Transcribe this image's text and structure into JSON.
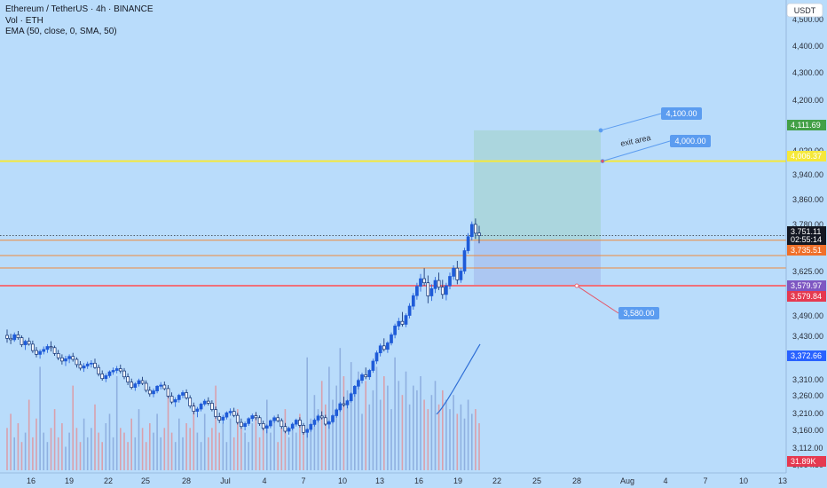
{
  "header": {
    "symbol_line": "Ethereum / TetherUS · 4h · BINANCE",
    "vol_line": "Vol · ETH",
    "ema_line": "EMA (50, close, 0, SMA, 50)"
  },
  "currency_badge": "USDT",
  "colors": {
    "background": "#b9dcfb",
    "bull": "#1e5bd8",
    "bear": "#0b2a6e",
    "target_zone": "#a8d5d8",
    "stop_zone": "#a9c3f0",
    "yellow_line": "#f5e83a",
    "red_line": "#f0707a",
    "orange_line": "#f08a3c",
    "ema": "#2f6fd6",
    "callout": "#5b9cf0"
  },
  "chart_data": {
    "type": "candlestick",
    "x_tick_labels": [
      "16",
      "19",
      "22",
      "25",
      "28",
      "Jul",
      "4",
      "7",
      "10",
      "13",
      "16",
      "19",
      "22",
      "25",
      "28",
      "Aug",
      "4",
      "7",
      "10",
      "13"
    ],
    "y_tick_labels": [
      "4,500.00",
      "4,400.00",
      "4,300.00",
      "4,200.00",
      "4,020.00",
      "3,940.00",
      "3,860.00",
      "3,780.00",
      "3,625.00",
      "3,490.00",
      "3,430.00",
      "3,310.00",
      "3,260.00",
      "3,210.00",
      "3,160.00",
      "3,112.00",
      "3,064.50"
    ],
    "price_tags": [
      {
        "label": "4,111.69",
        "color": "#43a047"
      },
      {
        "label": "4,006.37",
        "color": "#f5e83a",
        "text_color": "#131722"
      },
      {
        "label": "3,751.11",
        "color": "#131722"
      },
      {
        "label": "02:55:14",
        "color": "#131722"
      },
      {
        "label": "3,735.51",
        "color": "#f0702a"
      },
      {
        "label": "3,579.97",
        "color": "#7e57c2"
      },
      {
        "label": "3,579.84",
        "color": "#e53950"
      },
      {
        "label": "3,372.66",
        "color": "#2962ff"
      },
      {
        "label": "31.89K",
        "color": "#e53950"
      }
    ],
    "levels": {
      "yellow_line": 4006.37,
      "red_line": 3579.84,
      "entry": 3735.51,
      "last_price": 3751.11
    },
    "position": {
      "target": 4111.69,
      "entry": 3735.51,
      "stop": 3579.84
    },
    "callouts": [
      {
        "label": "4,100.00"
      },
      {
        "label": "4,000.00"
      },
      {
        "label": "3,580.00"
      }
    ],
    "annotation_text": "exit area",
    "candles": [
      [
        3410,
        3430,
        3385,
        3400
      ],
      [
        3400,
        3415,
        3380,
        3395
      ],
      [
        3395,
        3420,
        3388,
        3412
      ],
      [
        3412,
        3425,
        3395,
        3402
      ],
      [
        3402,
        3410,
        3370,
        3378
      ],
      [
        3378,
        3395,
        3360,
        3390
      ],
      [
        3390,
        3402,
        3375,
        3380
      ],
      [
        3380,
        3392,
        3350,
        3358
      ],
      [
        3358,
        3370,
        3335,
        3345
      ],
      [
        3345,
        3362,
        3330,
        3355
      ],
      [
        3355,
        3372,
        3345,
        3362
      ],
      [
        3362,
        3380,
        3350,
        3372
      ],
      [
        3372,
        3390,
        3355,
        3368
      ],
      [
        3368,
        3375,
        3340,
        3348
      ],
      [
        3348,
        3360,
        3325,
        3333
      ],
      [
        3333,
        3345,
        3310,
        3322
      ],
      [
        3322,
        3340,
        3305,
        3330
      ],
      [
        3330,
        3345,
        3315,
        3338
      ],
      [
        3338,
        3350,
        3320,
        3328
      ],
      [
        3328,
        3335,
        3300,
        3310
      ],
      [
        3310,
        3322,
        3290,
        3298
      ],
      [
        3298,
        3315,
        3285,
        3305
      ],
      [
        3305,
        3320,
        3295,
        3312
      ],
      [
        3312,
        3325,
        3300,
        3315
      ],
      [
        3315,
        3330,
        3295,
        3300
      ],
      [
        3300,
        3310,
        3270,
        3278
      ],
      [
        3278,
        3290,
        3255,
        3262
      ],
      [
        3262,
        3280,
        3250,
        3272
      ],
      [
        3272,
        3290,
        3265,
        3285
      ],
      [
        3285,
        3300,
        3275,
        3290
      ],
      [
        3290,
        3305,
        3280,
        3296
      ],
      [
        3296,
        3310,
        3280,
        3288
      ],
      [
        3288,
        3298,
        3260,
        3268
      ],
      [
        3268,
        3280,
        3240,
        3250
      ],
      [
        3250,
        3262,
        3225,
        3232
      ],
      [
        3232,
        3250,
        3220,
        3244
      ],
      [
        3244,
        3262,
        3235,
        3255
      ],
      [
        3255,
        3268,
        3240,
        3246
      ],
      [
        3246,
        3256,
        3215,
        3222
      ],
      [
        3222,
        3235,
        3200,
        3210
      ],
      [
        3210,
        3228,
        3198,
        3220
      ],
      [
        3220,
        3240,
        3212,
        3236
      ],
      [
        3236,
        3250,
        3225,
        3240
      ],
      [
        3240,
        3252,
        3222,
        3228
      ],
      [
        3228,
        3240,
        3195,
        3202
      ],
      [
        3202,
        3215,
        3175,
        3182
      ],
      [
        3182,
        3198,
        3165,
        3190
      ],
      [
        3190,
        3210,
        3180,
        3205
      ],
      [
        3205,
        3222,
        3195,
        3214
      ],
      [
        3214,
        3225,
        3190,
        3196
      ],
      [
        3196,
        3205,
        3160,
        3168
      ],
      [
        3168,
        3180,
        3140,
        3150
      ],
      [
        3150,
        3165,
        3130,
        3158
      ],
      [
        3158,
        3180,
        3150,
        3175
      ],
      [
        3175,
        3192,
        3168,
        3185
      ],
      [
        3185,
        3198,
        3170,
        3178
      ],
      [
        3178,
        3188,
        3150,
        3156
      ],
      [
        3156,
        3166,
        3125,
        3132
      ],
      [
        3132,
        3145,
        3110,
        3120
      ],
      [
        3120,
        3138,
        3108,
        3130
      ],
      [
        3130,
        3150,
        3122,
        3145
      ],
      [
        3145,
        3160,
        3135,
        3150
      ],
      [
        3150,
        3162,
        3130,
        3136
      ],
      [
        3136,
        3145,
        3105,
        3112
      ],
      [
        3112,
        3125,
        3090,
        3098
      ],
      [
        3098,
        3115,
        3085,
        3108
      ],
      [
        3108,
        3130,
        3100,
        3125
      ],
      [
        3125,
        3142,
        3115,
        3135
      ],
      [
        3135,
        3148,
        3120,
        3128
      ],
      [
        3128,
        3136,
        3100,
        3108
      ],
      [
        3108,
        3118,
        3085,
        3092
      ],
      [
        3092,
        3105,
        3075,
        3100
      ],
      [
        3100,
        3122,
        3092,
        3118
      ],
      [
        3118,
        3135,
        3110,
        3128
      ],
      [
        3128,
        3140,
        3112,
        3118
      ],
      [
        3118,
        3126,
        3090,
        3098
      ],
      [
        3098,
        3110,
        3075,
        3082
      ],
      [
        3082,
        3098,
        3070,
        3092
      ],
      [
        3092,
        3112,
        3085,
        3106
      ],
      [
        3106,
        3125,
        3098,
        3120
      ],
      [
        3120,
        3130,
        3095,
        3102
      ],
      [
        3102,
        3110,
        3070,
        3078
      ],
      [
        3078,
        3092,
        3060,
        3088
      ],
      [
        3088,
        3110,
        3080,
        3105
      ],
      [
        3105,
        3126,
        3098,
        3120
      ],
      [
        3120,
        3140,
        3112,
        3134
      ],
      [
        3134,
        3150,
        3122,
        3128
      ],
      [
        3128,
        3138,
        3100,
        3106
      ],
      [
        3106,
        3120,
        3090,
        3114
      ],
      [
        3114,
        3140,
        3108,
        3135
      ],
      [
        3135,
        3160,
        3128,
        3155
      ],
      [
        3155,
        3182,
        3148,
        3176
      ],
      [
        3176,
        3200,
        3165,
        3172
      ],
      [
        3172,
        3190,
        3160,
        3186
      ],
      [
        3186,
        3215,
        3180,
        3210
      ],
      [
        3210,
        3240,
        3200,
        3236
      ],
      [
        3236,
        3262,
        3225,
        3256
      ],
      [
        3256,
        3282,
        3245,
        3275
      ],
      [
        3275,
        3300,
        3260,
        3268
      ],
      [
        3268,
        3295,
        3258,
        3290
      ],
      [
        3290,
        3330,
        3282,
        3322
      ],
      [
        3322,
        3358,
        3312,
        3350
      ],
      [
        3350,
        3382,
        3338,
        3374
      ],
      [
        3374,
        3400,
        3355,
        3362
      ],
      [
        3362,
        3390,
        3350,
        3384
      ],
      [
        3384,
        3420,
        3376,
        3412
      ],
      [
        3412,
        3450,
        3400,
        3442
      ],
      [
        3442,
        3470,
        3428,
        3458
      ],
      [
        3458,
        3490,
        3440,
        3448
      ],
      [
        3448,
        3485,
        3438,
        3478
      ],
      [
        3478,
        3520,
        3468,
        3510
      ],
      [
        3510,
        3555,
        3498,
        3546
      ],
      [
        3546,
        3590,
        3532,
        3578
      ],
      [
        3578,
        3620,
        3560,
        3604
      ],
      [
        3604,
        3640,
        3580,
        3590
      ],
      [
        3590,
        3615,
        3520,
        3545
      ],
      [
        3545,
        3585,
        3528,
        3570
      ],
      [
        3570,
        3610,
        3555,
        3598
      ],
      [
        3598,
        3625,
        3565,
        3575
      ],
      [
        3575,
        3600,
        3535,
        3550
      ],
      [
        3550,
        3590,
        3530,
        3580
      ],
      [
        3580,
        3625,
        3568,
        3612
      ],
      [
        3612,
        3650,
        3600,
        3640
      ],
      [
        3640,
        3665,
        3585,
        3600
      ],
      [
        3600,
        3640,
        3590,
        3630
      ],
      [
        3630,
        3710,
        3620,
        3700
      ],
      [
        3700,
        3760,
        3690,
        3748
      ],
      [
        3748,
        3800,
        3735,
        3790
      ],
      [
        3790,
        3810,
        3740,
        3760
      ],
      [
        3760,
        3785,
        3725,
        3751.11
      ]
    ],
    "volumes": [
      9,
      12,
      7,
      10,
      6,
      8,
      15,
      7,
      11,
      22,
      8,
      6,
      9,
      13,
      7,
      10,
      5,
      8,
      18,
      9,
      6,
      11,
      7,
      9,
      14,
      8,
      6,
      10,
      12,
      7,
      20,
      9,
      8,
      6,
      11,
      7,
      13,
      9,
      6,
      10,
      8,
      12,
      7,
      9,
      16,
      8,
      6,
      11,
      7,
      10,
      9,
      14,
      8,
      6,
      12,
      7,
      9,
      18,
      8,
      10,
      6,
      11,
      7,
      13,
      9,
      8,
      6,
      10,
      12,
      7,
      9,
      15,
      8,
      11,
      6,
      9,
      13,
      7,
      10,
      8,
      12,
      9,
      24,
      11,
      16,
      13,
      19,
      14,
      22,
      15,
      18,
      26,
      20,
      17,
      23,
      16,
      21,
      12,
      19,
      14,
      17,
      22,
      15,
      20,
      18,
      13,
      24,
      19,
      16,
      21,
      14,
      18,
      17,
      20,
      15,
      13,
      16,
      19,
      14,
      17,
      15,
      13,
      16,
      12,
      14,
      11,
      15,
      12,
      13,
      10
    ],
    "ema": [
      3140,
      3150,
      3162,
      3176,
      3190,
      3205,
      3220,
      3236,
      3252,
      3268,
      3284,
      3300,
      3316,
      3332,
      3348,
      3364,
      3380
    ]
  }
}
